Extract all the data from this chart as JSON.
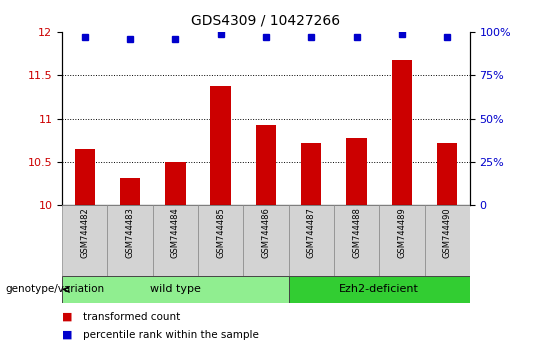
{
  "title": "GDS4309 / 10427266",
  "samples": [
    "GSM744482",
    "GSM744483",
    "GSM744484",
    "GSM744485",
    "GSM744486",
    "GSM744487",
    "GSM744488",
    "GSM744489",
    "GSM744490"
  ],
  "transformed_count": [
    10.65,
    10.32,
    10.5,
    11.37,
    10.93,
    10.72,
    10.78,
    11.67,
    10.72
  ],
  "percentile_rank": [
    97,
    96,
    96,
    99,
    97,
    97,
    97,
    99,
    97
  ],
  "ylim_left": [
    10,
    12
  ],
  "ylim_right": [
    0,
    100
  ],
  "yticks_left": [
    10,
    10.5,
    11,
    11.5,
    12
  ],
  "yticks_right": [
    0,
    25,
    50,
    75,
    100
  ],
  "bar_color": "#cc0000",
  "dot_color": "#0000cc",
  "groups": [
    {
      "label": "wild type",
      "samples": [
        0,
        1,
        2,
        3,
        4
      ],
      "color": "#90ee90"
    },
    {
      "label": "Ezh2-deficient",
      "samples": [
        5,
        6,
        7,
        8
      ],
      "color": "#32cd32"
    }
  ],
  "group_label": "genotype/variation",
  "legend_bar": "transformed count",
  "legend_dot": "percentile rank within the sample",
  "title_fontsize": 10,
  "tick_fontsize": 8,
  "axis_left_color": "#cc0000",
  "axis_right_color": "#0000cc",
  "grid_yticks": [
    10.5,
    11,
    11.5
  ]
}
